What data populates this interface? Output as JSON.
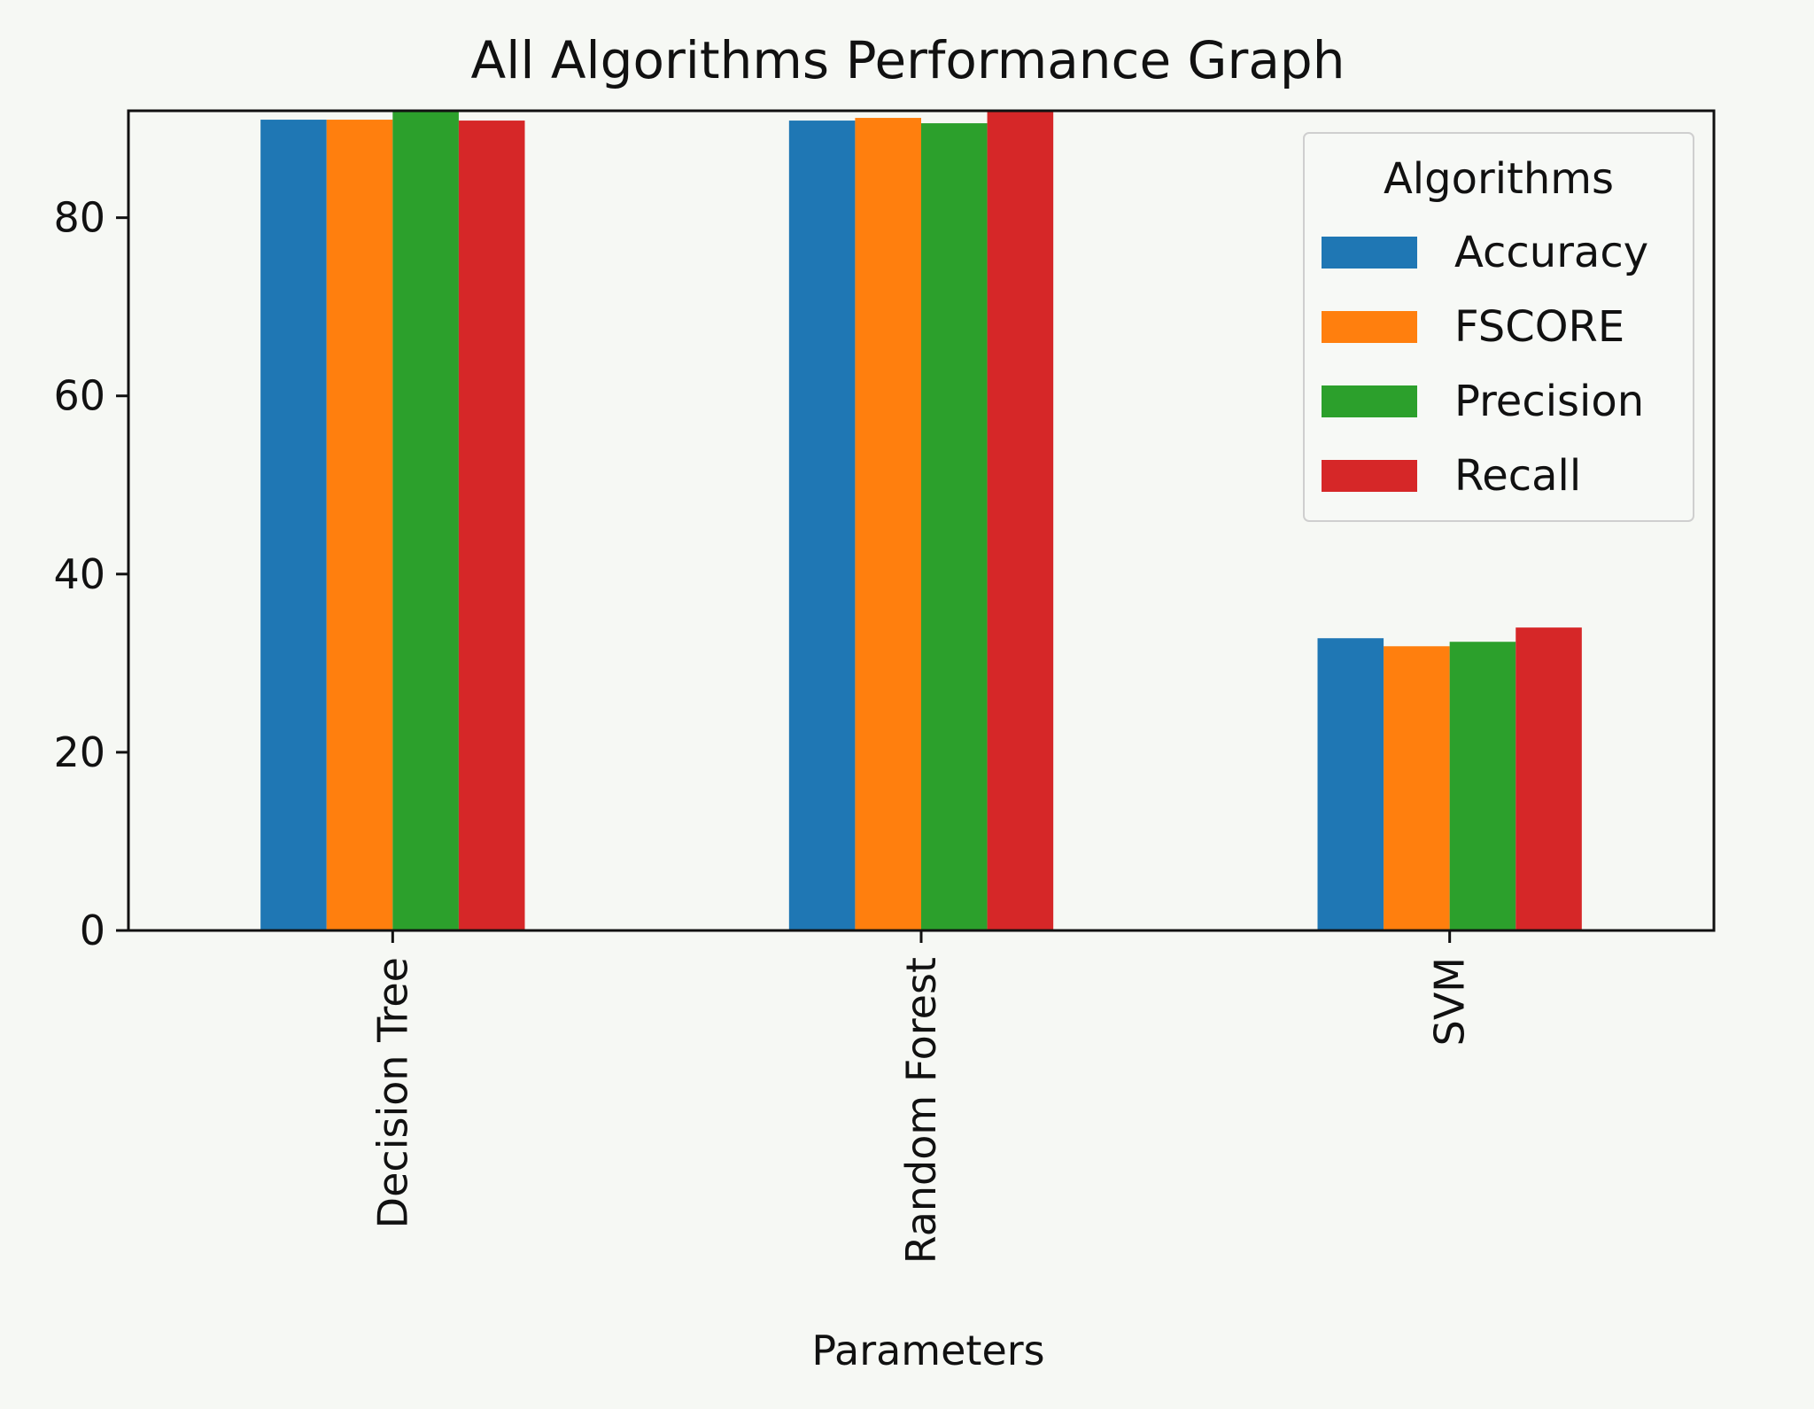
{
  "chart_data": {
    "type": "bar",
    "title": "All Algorithms Performance Graph",
    "xlabel": "Parameters",
    "ylabel": "",
    "categories": [
      "Decision Tree",
      "Random Forest",
      "SVM"
    ],
    "yticks": [
      0,
      20,
      40,
      60,
      80
    ],
    "ylim": [
      0,
      92
    ],
    "grid": false,
    "legend": {
      "title": "Algorithms",
      "placement": "top-right"
    },
    "series": [
      {
        "name": "Accuracy",
        "color": "#1f77b4",
        "values": [
          91.0,
          90.9,
          32.8
        ]
      },
      {
        "name": "FSCORE",
        "color": "#ff7f0e",
        "values": [
          91.0,
          91.2,
          31.9
        ]
      },
      {
        "name": "Precision",
        "color": "#2ca02c",
        "values": [
          92.1,
          90.6,
          32.4
        ]
      },
      {
        "name": "Recall",
        "color": "#d62728",
        "values": [
          90.9,
          91.9,
          34.0
        ]
      }
    ]
  }
}
